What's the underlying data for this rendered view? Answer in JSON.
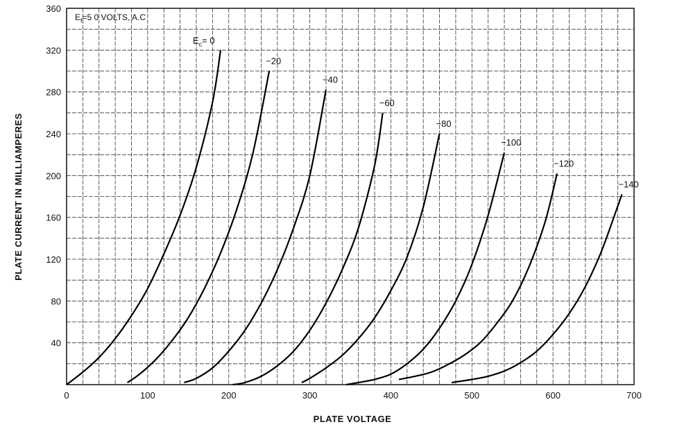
{
  "chart_data": {
    "type": "line",
    "title": "",
    "xlabel": "PLATE VOLTAGE",
    "ylabel": "PLATE CURRENT IN MILLIAMPERES",
    "xlim": [
      0,
      700
    ],
    "ylim": [
      0,
      360
    ],
    "x_ticks": [
      0,
      100,
      200,
      300,
      400,
      500,
      600,
      700
    ],
    "y_ticks": [
      40,
      80,
      120,
      160,
      200,
      240,
      280,
      320,
      360
    ],
    "grid": true,
    "annotation": {
      "prefix": "E",
      "sub": "f",
      "text": "=5 0  VOLTS, A.C"
    },
    "curve_label_prefix": {
      "prefix": "E",
      "sub": "c",
      "text": "= 0"
    },
    "series": [
      {
        "name": "0",
        "label": "",
        "x": [
          0,
          20,
          40,
          60,
          80,
          100,
          120,
          140,
          160,
          180,
          190
        ],
        "y": [
          0,
          12,
          26,
          44,
          66,
          92,
          125,
          162,
          208,
          270,
          320
        ]
      },
      {
        "name": "-20",
        "label": "−20",
        "x": [
          75,
          90,
          110,
          130,
          150,
          170,
          190,
          210,
          230,
          250
        ],
        "y": [
          2,
          10,
          24,
          42,
          64,
          92,
          126,
          168,
          222,
          300
        ]
      },
      {
        "name": "-40",
        "label": "−40",
        "x": [
          145,
          160,
          180,
          200,
          220,
          240,
          260,
          280,
          300,
          320
        ],
        "y": [
          2,
          6,
          16,
          32,
          52,
          78,
          110,
          150,
          200,
          282
        ]
      },
      {
        "name": "-60",
        "label": "−60",
        "x": [
          205,
          220,
          240,
          260,
          280,
          300,
          320,
          340,
          360,
          380,
          390
        ],
        "y": [
          0,
          2,
          8,
          18,
          32,
          52,
          78,
          110,
          150,
          210,
          260
        ]
      },
      {
        "name": "-80",
        "label": "−80",
        "x": [
          290,
          300,
          320,
          340,
          360,
          380,
          400,
          420,
          440,
          460
        ],
        "y": [
          2,
          6,
          16,
          28,
          44,
          64,
          90,
          122,
          170,
          240
        ]
      },
      {
        "name": "-100",
        "label": "−100",
        "x": [
          345,
          360,
          380,
          400,
          420,
          440,
          460,
          480,
          500,
          520,
          540
        ],
        "y": [
          0,
          2,
          5,
          10,
          20,
          34,
          54,
          80,
          115,
          162,
          222
        ]
      },
      {
        "name": "-120",
        "label": "−120",
        "x": [
          410,
          430,
          450,
          470,
          490,
          510,
          530,
          550,
          570,
          590,
          605
        ],
        "y": [
          5,
          8,
          12,
          19,
          28,
          40,
          58,
          80,
          112,
          155,
          202
        ]
      },
      {
        "name": "-140",
        "label": "−140",
        "x": [
          475,
          500,
          520,
          540,
          560,
          580,
          600,
          620,
          640,
          660,
          685
        ],
        "y": [
          2,
          5,
          8,
          13,
          21,
          32,
          48,
          68,
          94,
          128,
          182
        ]
      }
    ]
  }
}
